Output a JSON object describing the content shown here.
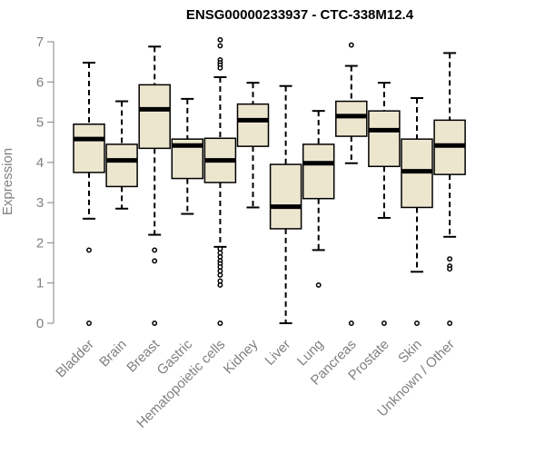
{
  "chart_data": {
    "type": "box",
    "title": "ENSG00000233937 - CTC-338M12.4",
    "xlabel": "",
    "ylabel": "Expression",
    "ylim": [
      0,
      7
    ],
    "yticks": [
      0,
      1,
      2,
      3,
      4,
      5,
      6,
      7
    ],
    "grid": false,
    "colors": {
      "box_fill": "#ede6cf",
      "stroke": "#000000",
      "axis": "#808080",
      "title": "#000000"
    },
    "categories": [
      "Bladder",
      "Brain",
      "Breast",
      "Gastric",
      "Hematopoietic cells",
      "Kidney",
      "Liver",
      "Lung",
      "Pancreas",
      "Prostate",
      "Skin",
      "Unknown / Other"
    ],
    "boxes": [
      {
        "name": "Bladder",
        "lower_whisker": 2.6,
        "q1": 3.75,
        "median": 4.58,
        "q3": 4.95,
        "upper_whisker": 6.48,
        "outliers": [
          1.82,
          0.0
        ]
      },
      {
        "name": "Brain",
        "lower_whisker": 2.85,
        "q1": 3.4,
        "median": 4.05,
        "q3": 4.45,
        "upper_whisker": 5.52,
        "outliers": []
      },
      {
        "name": "Breast",
        "lower_whisker": 2.2,
        "q1": 4.35,
        "median": 5.32,
        "q3": 5.93,
        "upper_whisker": 6.88,
        "outliers": [
          1.82,
          1.55,
          0.0
        ]
      },
      {
        "name": "Gastric",
        "lower_whisker": 2.72,
        "q1": 3.6,
        "median": 4.42,
        "q3": 4.58,
        "upper_whisker": 5.58,
        "outliers": []
      },
      {
        "name": "Hematopoietic cells",
        "lower_whisker": 1.9,
        "q1": 3.5,
        "median": 4.05,
        "q3": 4.6,
        "upper_whisker": 6.12,
        "outliers": [
          7.05,
          6.9,
          6.55,
          6.48,
          6.42,
          6.35,
          1.85,
          1.75,
          1.65,
          1.55,
          1.48,
          1.4,
          1.3,
          1.2,
          1.05,
          0.95,
          0.0
        ]
      },
      {
        "name": "Kidney",
        "lower_whisker": 2.88,
        "q1": 4.4,
        "median": 5.05,
        "q3": 5.45,
        "upper_whisker": 5.98,
        "outliers": []
      },
      {
        "name": "Liver",
        "lower_whisker": 0.0,
        "q1": 2.35,
        "median": 2.9,
        "q3": 3.95,
        "upper_whisker": 5.9,
        "outliers": []
      },
      {
        "name": "Lung",
        "lower_whisker": 1.82,
        "q1": 3.1,
        "median": 3.98,
        "q3": 4.45,
        "upper_whisker": 5.28,
        "outliers": [
          0.95
        ]
      },
      {
        "name": "Pancreas",
        "lower_whisker": 3.98,
        "q1": 4.65,
        "median": 5.15,
        "q3": 5.52,
        "upper_whisker": 6.4,
        "outliers": [
          6.92,
          0.0
        ]
      },
      {
        "name": "Prostate",
        "lower_whisker": 2.62,
        "q1": 3.9,
        "median": 4.8,
        "q3": 5.28,
        "upper_whisker": 5.98,
        "outliers": [
          0.0
        ]
      },
      {
        "name": "Skin",
        "lower_whisker": 1.28,
        "q1": 2.88,
        "median": 3.78,
        "q3": 4.58,
        "upper_whisker": 5.6,
        "outliers": [
          0.0
        ]
      },
      {
        "name": "Unknown / Other",
        "lower_whisker": 2.15,
        "q1": 3.7,
        "median": 4.42,
        "q3": 5.05,
        "upper_whisker": 6.72,
        "outliers": [
          1.6,
          1.42,
          1.35,
          0.0
        ]
      }
    ]
  }
}
